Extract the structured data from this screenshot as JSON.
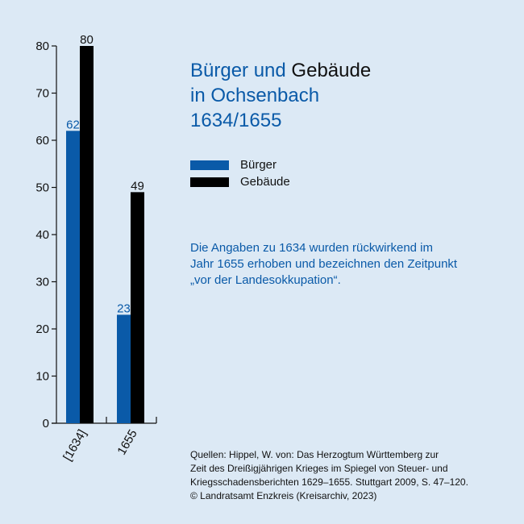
{
  "header": {
    "title_line1_blue": "Bürger und",
    "title_line1_black": "Gebäude",
    "title_line2": "in Ochsenbach",
    "title_line3": "1634/1655"
  },
  "note": {
    "line1": "Die Angaben zu 1634 wurden rückwirkend im",
    "line2": "Jahr 1655 erhoben und bezeichnen den Zeitpunkt",
    "line3": "„vor der Landesokkupation“."
  },
  "sources": {
    "line1": "Quellen: Hippel, W. von: Das Herzogtum Württemberg zur",
    "line2": "Zeit des Dreißigjährigen Krieges im Spiegel von Steuer- und",
    "line3": "Kriegsschadensberichten 1629–1655. Stuttgart 2009, S. 47–120.",
    "line4": "© Landratsamt Enzkreis (Kreisarchiv, 2023)"
  },
  "colors": {
    "buerger": "#0a5aa8",
    "gebaeude": "#000000",
    "background": "#dce9f5"
  },
  "chart_data": {
    "type": "bar",
    "categories": [
      "[1634]",
      "1655"
    ],
    "series": [
      {
        "name": "Bürger",
        "values": [
          62,
          23
        ],
        "color": "#0a5aa8"
      },
      {
        "name": "Gebäude",
        "values": [
          80,
          49
        ],
        "color": "#000000"
      }
    ],
    "ylim": [
      0,
      80
    ],
    "yticks": [
      "0",
      "10",
      "20",
      "30",
      "40",
      "50",
      "60",
      "70",
      "80"
    ],
    "title": "Bürger und Gebäude in Ochsenbach 1634/1655",
    "xlabel": "",
    "ylabel": "",
    "grid": false,
    "legend": "right"
  }
}
